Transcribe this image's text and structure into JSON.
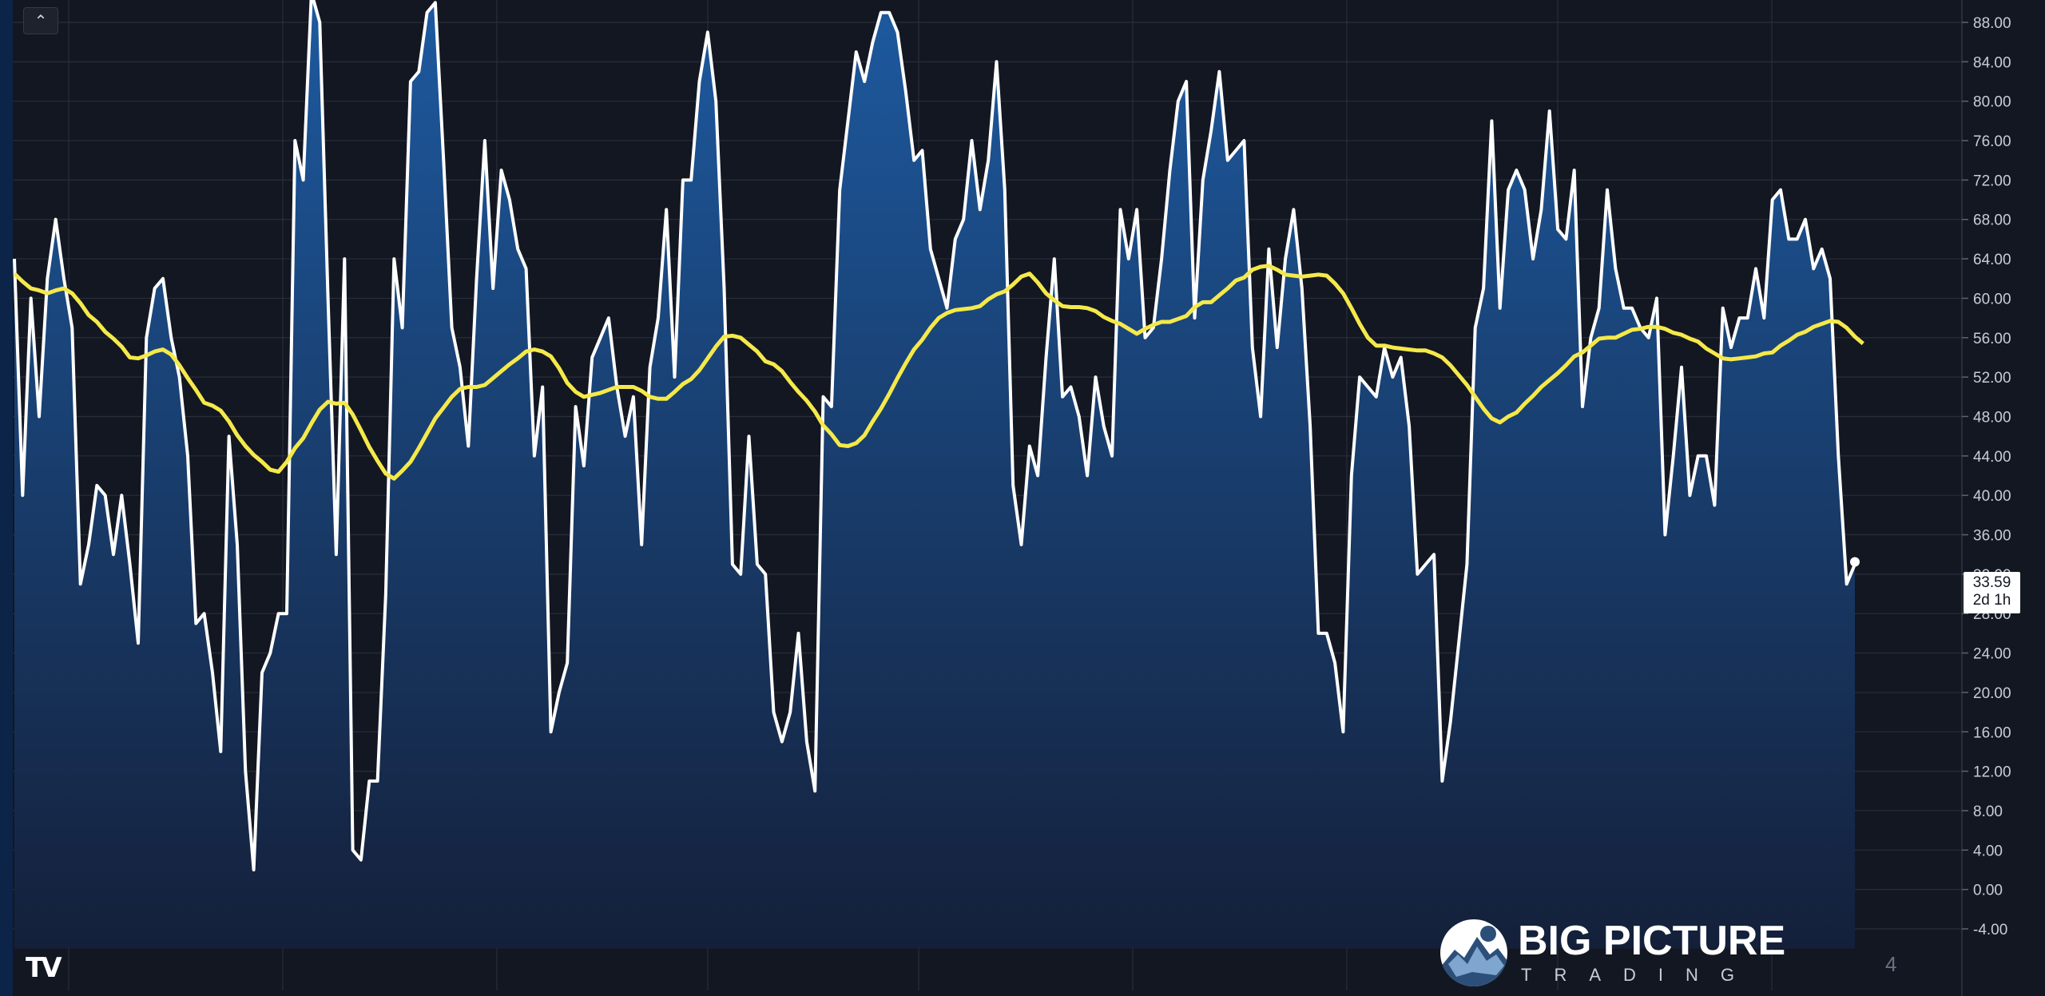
{
  "toolbar": {
    "collapse_icon": "chevron-up-icon",
    "collapse_glyph": "⌃"
  },
  "branding": {
    "tradingview_logo": "TV",
    "watermark_title": "BIG PICTURE",
    "watermark_subtitle": "TRADING",
    "corner_number": "4"
  },
  "last_value": {
    "value": "33.59",
    "countdown": "2d 1h"
  },
  "colors": {
    "background": "#131722",
    "grid": "#2a2e39",
    "oscillator_line": "#ffffff",
    "signal_line": "#f5e94a",
    "fill_top": "#1d5aa0",
    "fill_bottom": "#14203a",
    "axis_text": "#c7cdd8"
  },
  "chart_data": {
    "type": "area",
    "title": "",
    "xlabel": "",
    "ylabel": "",
    "ylim": [
      -6.0,
      91.0
    ],
    "yticks": [
      88,
      84,
      80,
      76,
      72,
      68,
      64,
      60,
      56,
      52,
      48,
      44,
      40,
      36,
      32,
      28,
      24,
      20,
      16,
      12,
      8,
      4,
      0,
      -4
    ],
    "ytick_labels": [
      "88.00",
      "84.00",
      "80.00",
      "76.00",
      "72.00",
      "68.00",
      "64.00",
      "60.00",
      "56.00",
      "52.00",
      "48.00",
      "44.00",
      "40.00",
      "36.00",
      "32.00",
      "28.00",
      "24.00",
      "20.00",
      "16.00",
      "12.00",
      "8.00",
      "4.00",
      "0.00",
      "-4.00"
    ],
    "grid": true,
    "series": [
      {
        "values": [
          64,
          40,
          60,
          48,
          62,
          68,
          62,
          57,
          31,
          35,
          41,
          40,
          34,
          40,
          33,
          25,
          56,
          61,
          62,
          56,
          52,
          44,
          27,
          28,
          22,
          14,
          46,
          35,
          12,
          2,
          22,
          24,
          28,
          28,
          76,
          72,
          91,
          88,
          60,
          34,
          64,
          4,
          3,
          11,
          11,
          30,
          64,
          57,
          82,
          83,
          89,
          90,
          74,
          57,
          53,
          45,
          62,
          76,
          61,
          73,
          70,
          65,
          63,
          44,
          51,
          16,
          20,
          23,
          49,
          43,
          54,
          56,
          58,
          51,
          46,
          50,
          35,
          53,
          58,
          69,
          52,
          72,
          72,
          82,
          87,
          80,
          61,
          33,
          32,
          46,
          33,
          32,
          18,
          15,
          18,
          26,
          15,
          10,
          50,
          49,
          71,
          78,
          85,
          82,
          86,
          89,
          89,
          87,
          81,
          74,
          75,
          65,
          62,
          59,
          66,
          68,
          76,
          69,
          74,
          84,
          71,
          41,
          35,
          45,
          42,
          54,
          64,
          50,
          51,
          48,
          42,
          52,
          47,
          44,
          69,
          64,
          69,
          56,
          57,
          64,
          73,
          80,
          82,
          58,
          72,
          77,
          83,
          74,
          75,
          76,
          55,
          48,
          65,
          55,
          64,
          69,
          61,
          47,
          26,
          26,
          23,
          16,
          42,
          52,
          51,
          50,
          55,
          52,
          54,
          47,
          32,
          33,
          34,
          11,
          17,
          25,
          33,
          57,
          61,
          78,
          59,
          71,
          73,
          71,
          64,
          69,
          79,
          67,
          66,
          73,
          49,
          56,
          59,
          71,
          63,
          59,
          59,
          57,
          56,
          60,
          36,
          44,
          53,
          40,
          44,
          44,
          39,
          59,
          55,
          58,
          58,
          63,
          58,
          70,
          71,
          66,
          66,
          68,
          63,
          65,
          62,
          44,
          31,
          33
        ]
      },
      {
        "values": [
          62.5,
          61.7,
          61,
          60.8,
          60.5,
          60.8,
          61,
          60.5,
          59.5,
          58.3,
          57.6,
          56.6,
          55.9,
          55.1,
          54,
          53.9,
          54.2,
          54.6,
          54.8,
          54.3,
          53.2,
          51.9,
          50.7,
          49.4,
          49.1,
          48.6,
          47.5,
          46.1,
          45,
          44.1,
          43.4,
          42.6,
          42.4,
          43.4,
          44.8,
          45.8,
          47.3,
          48.7,
          49.5,
          49.3,
          49.4,
          48.2,
          46.6,
          44.9,
          43.5,
          42.2,
          41.7,
          42.5,
          43.4,
          44.8,
          46.3,
          47.8,
          48.9,
          50,
          50.8,
          51,
          51,
          51.2,
          51.9,
          52.6,
          53.3,
          53.9,
          54.6,
          54.8,
          54.6,
          54.1,
          52.9,
          51.4,
          50.5,
          50,
          50.2,
          50.4,
          50.7,
          51,
          51,
          51,
          50.6,
          50,
          49.8,
          49.8,
          50.5,
          51.3,
          51.8,
          52.7,
          53.9,
          55.1,
          56.1,
          56.2,
          56,
          55.3,
          54.6,
          53.6,
          53.3,
          52.6,
          51.5,
          50.5,
          49.6,
          48.5,
          47.1,
          46.2,
          45.1,
          45,
          45.3,
          46.1,
          47.5,
          48.8,
          50.3,
          51.9,
          53.4,
          54.8,
          55.8,
          57,
          58,
          58.5,
          58.8,
          58.9,
          59,
          59.2,
          59.9,
          60.4,
          60.7,
          61.4,
          62.2,
          62.5,
          61.6,
          60.5,
          59.8,
          59.2,
          59.1,
          59.1,
          59,
          58.7,
          58.1,
          57.7,
          57.4,
          56.9,
          56.4,
          56.9,
          57.3,
          57.6,
          57.6,
          57.9,
          58.2,
          59.1,
          59.6,
          59.6,
          60.3,
          61,
          61.8,
          62.1,
          62.9,
          63.2,
          63.3,
          62.9,
          62.4,
          62.3,
          62.2,
          62.3,
          62.4,
          62.3,
          61.5,
          60.5,
          59,
          57.4,
          56,
          55.2,
          55.2,
          55,
          54.9,
          54.8,
          54.7,
          54.7,
          54.4,
          54,
          53.2,
          52.2,
          51.2,
          50,
          48.8,
          47.8,
          47.4,
          48,
          48.4,
          49.3,
          50.1,
          51,
          51.7,
          52.4,
          53.2,
          54.1,
          54.5,
          55.2,
          55.9,
          56,
          56,
          56.4,
          56.8,
          56.9,
          57.1,
          57.1,
          56.9,
          56.5,
          56.3,
          55.9,
          55.6,
          54.9,
          54.4,
          53.9,
          53.8,
          53.9,
          54,
          54.1,
          54.4,
          54.5,
          55.2,
          55.7,
          56.3,
          56.6,
          57.1,
          57.4,
          57.7,
          57.6,
          57,
          56.1,
          55.4
        ]
      }
    ]
  }
}
